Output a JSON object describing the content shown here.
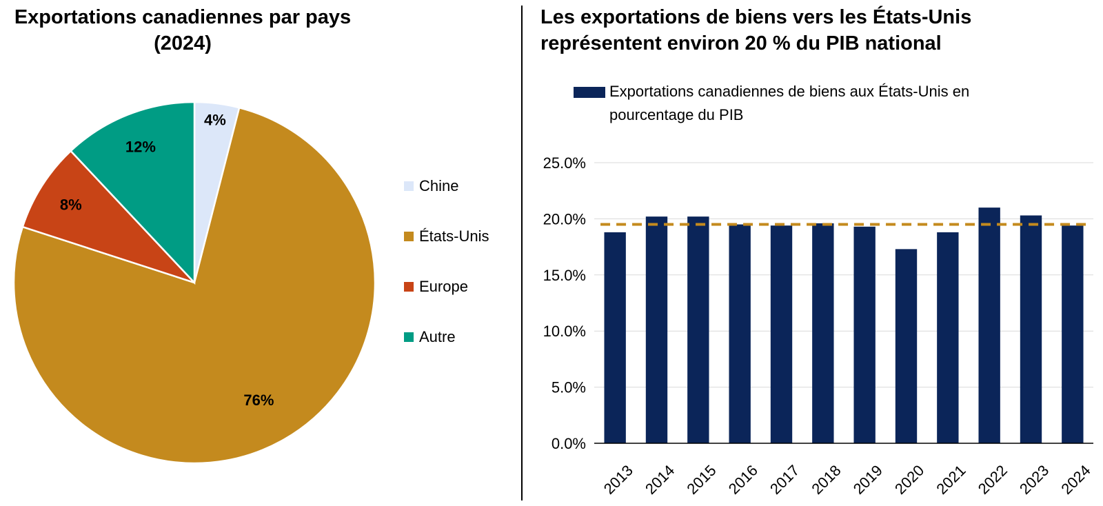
{
  "colors": {
    "chine": "#dce7f9",
    "etats_unis": "#c48a1e",
    "europe": "#c84416",
    "autre": "#009c84",
    "bar": "#0b2559",
    "reference": "#c48a1e",
    "grid": "#d9d9d9",
    "axis": "#000000"
  },
  "chart_data": [
    {
      "type": "pie",
      "title": "Exportations canadiennes par pays (2024)",
      "slices": [
        {
          "label": "Chine",
          "value": 4,
          "value_label": "4%",
          "color": "#dce7f9"
        },
        {
          "label": "États-Unis",
          "value": 76,
          "value_label": "76%",
          "color": "#c48a1e"
        },
        {
          "label": "Europe",
          "value": 8,
          "value_label": "8%",
          "color": "#c84416"
        },
        {
          "label": "Autre",
          "value": 12,
          "value_label": "12%",
          "color": "#009c84"
        }
      ],
      "legend_position": "right"
    },
    {
      "type": "bar",
      "title": "Les exportations de biens vers les États-Unis représentent environ 20 % du PIB national",
      "categories": [
        "2013",
        "2014",
        "2015",
        "2016",
        "2017",
        "2018",
        "2019",
        "2020",
        "2021",
        "2022",
        "2023",
        "2024"
      ],
      "series": [
        {
          "name": "Exportations canadiennes de biens aux États-Unis en pourcentage du PIB",
          "values": [
            18.8,
            20.2,
            20.2,
            19.5,
            19.4,
            19.6,
            19.3,
            17.3,
            18.8,
            21.0,
            20.3,
            19.4
          ],
          "color": "#0b2559"
        }
      ],
      "reference_line": {
        "value": 19.5,
        "style": "dashed",
        "color": "#c48a1e"
      },
      "ylim": [
        0,
        25
      ],
      "yticks": [
        0,
        5,
        10,
        15,
        20,
        25
      ],
      "ytick_labels": [
        "0.0%",
        "5.0%",
        "10.0%",
        "15.0%",
        "20.0%",
        "25.0%"
      ],
      "grid": true,
      "legend_position": "top"
    }
  ]
}
